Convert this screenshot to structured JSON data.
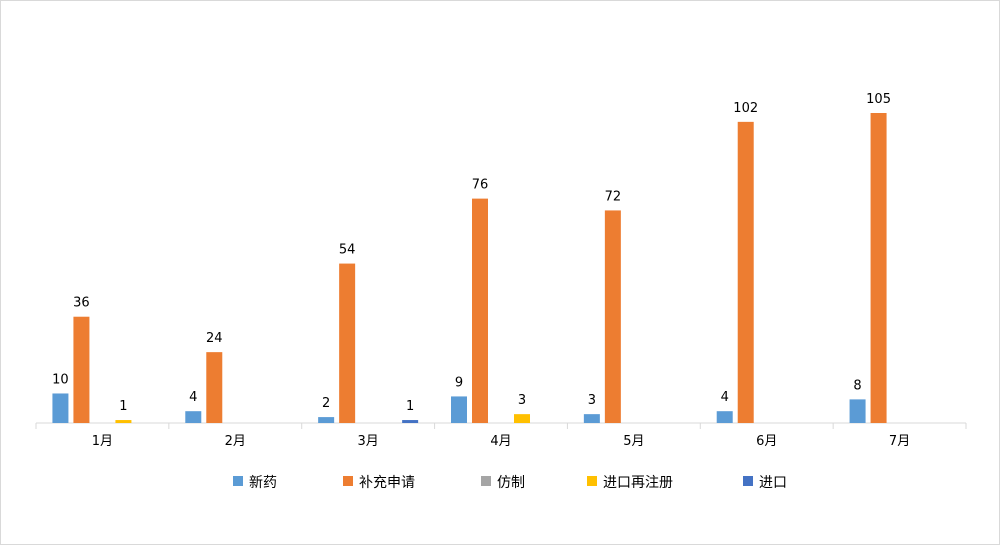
{
  "chart_data": {
    "type": "bar",
    "title": "",
    "xlabel": "",
    "ylabel": "",
    "grid": false,
    "legend_position": "bottom",
    "ylim": [
      0,
      110
    ],
    "categories": [
      "1月",
      "2月",
      "3月",
      "4月",
      "5月",
      "6月",
      "7月"
    ],
    "series": [
      {
        "name": "新药",
        "color": "#5b9bd5",
        "values": [
          10,
          4,
          2,
          9,
          3,
          4,
          8
        ]
      },
      {
        "name": "补充申请",
        "color": "#ed7d31",
        "values": [
          36,
          24,
          54,
          76,
          72,
          102,
          105
        ]
      },
      {
        "name": "仿制",
        "color": "#a5a5a5",
        "values": [
          null,
          null,
          null,
          null,
          null,
          null,
          null
        ]
      },
      {
        "name": "进口再注册",
        "color": "#ffc000",
        "values": [
          1,
          null,
          null,
          3,
          null,
          null,
          null
        ]
      },
      {
        "name": "进口",
        "color": "#4472c4",
        "values": [
          null,
          null,
          1,
          null,
          null,
          null,
          null
        ]
      }
    ]
  }
}
